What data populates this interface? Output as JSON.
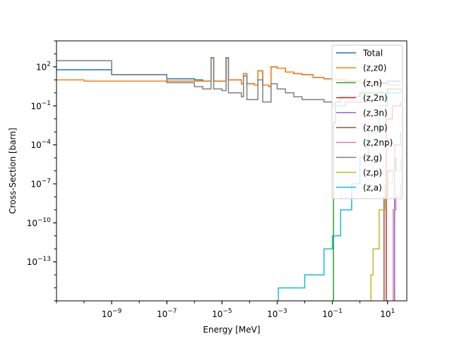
{
  "chart_data": {
    "type": "line",
    "xlabel": "Energy [MeV]",
    "ylabel": "Cross-Section [barn]",
    "xscale": "log",
    "yscale": "log",
    "xlim": [
      1e-11,
      50
    ],
    "ylim": [
      1e-16,
      10000
    ],
    "grid": false,
    "legend_placement": "top-right",
    "x_ticks": [
      {
        "value": 1e-09,
        "base": "10",
        "exp": "−9"
      },
      {
        "value": 1e-07,
        "base": "10",
        "exp": "−7"
      },
      {
        "value": 1e-05,
        "base": "10",
        "exp": "−5"
      },
      {
        "value": 0.001,
        "base": "10",
        "exp": "−3"
      },
      {
        "value": 0.1,
        "base": "10",
        "exp": "−1"
      },
      {
        "value": 10,
        "base": "10",
        "exp": "1"
      }
    ],
    "y_ticks": [
      {
        "value": 1e-13,
        "base": "10",
        "exp": "−13"
      },
      {
        "value": 1e-10,
        "base": "10",
        "exp": "−10"
      },
      {
        "value": 1e-07,
        "base": "10",
        "exp": "−7"
      },
      {
        "value": 0.0001,
        "base": "10",
        "exp": "−4"
      },
      {
        "value": 0.1,
        "base": "10",
        "exp": "−1"
      },
      {
        "value": 100,
        "base": "10",
        "exp": "2"
      }
    ],
    "series": [
      {
        "name": "Total",
        "color": "#1f77b4",
        "points": [
          [
            1e-11,
            60
          ],
          [
            1e-09,
            25
          ],
          [
            1e-07,
            12
          ],
          [
            1e-06,
            10
          ],
          [
            2e-06,
            8
          ],
          [
            4e-06,
            500
          ],
          [
            5e-06,
            8
          ],
          [
            1e-05,
            8
          ],
          [
            1.4e-05,
            500
          ],
          [
            1.7e-05,
            10
          ],
          [
            5e-05,
            5
          ],
          [
            6e-05,
            30
          ],
          [
            8e-05,
            5
          ],
          [
            0.00015,
            4
          ],
          [
            0.0002,
            50
          ],
          [
            0.0003,
            4
          ],
          [
            0.0005,
            3
          ],
          [
            0.0006,
            100
          ],
          [
            0.001,
            80
          ],
          [
            0.002,
            40
          ],
          [
            0.004,
            30
          ],
          [
            0.008,
            25
          ],
          [
            0.02,
            15
          ],
          [
            0.05,
            12
          ],
          [
            0.1,
            10
          ],
          [
            0.3,
            8
          ],
          [
            1,
            6
          ],
          [
            3,
            6
          ],
          [
            10,
            8
          ],
          [
            30,
            8
          ]
        ]
      },
      {
        "name": "(z,z0)",
        "color": "#ff7f0e",
        "points": [
          [
            1e-11,
            10
          ],
          [
            1e-10,
            8
          ],
          [
            1e-08,
            8
          ],
          [
            1e-06,
            8
          ],
          [
            2e-06,
            8
          ],
          [
            4e-06,
            500
          ],
          [
            5e-06,
            8
          ],
          [
            1e-05,
            8
          ],
          [
            1.4e-05,
            500
          ],
          [
            1.7e-05,
            10
          ],
          [
            5e-05,
            5
          ],
          [
            6e-05,
            30
          ],
          [
            8e-05,
            5
          ],
          [
            0.00015,
            4
          ],
          [
            0.0002,
            50
          ],
          [
            0.0003,
            4
          ],
          [
            0.0005,
            3
          ],
          [
            0.0006,
            100
          ],
          [
            0.001,
            80
          ],
          [
            0.002,
            40
          ],
          [
            0.004,
            30
          ],
          [
            0.008,
            25
          ],
          [
            0.02,
            15
          ],
          [
            0.05,
            12
          ],
          [
            0.1,
            10
          ],
          [
            0.3,
            8
          ],
          [
            1,
            6
          ],
          [
            3,
            5
          ],
          [
            10,
            4
          ],
          [
            30,
            4
          ]
        ]
      },
      {
        "name": "(z,n)",
        "color": "#2ca02c",
        "points": [
          [
            0.11,
            1e-16
          ],
          [
            0.11,
            0.005
          ],
          [
            0.13,
            0.2
          ],
          [
            0.2,
            0.5
          ],
          [
            1,
            1
          ],
          [
            10,
            2
          ],
          [
            30,
            2
          ]
        ]
      },
      {
        "name": "(z,2n)",
        "color": "#d62728",
        "points": [
          [
            9,
            1e-16
          ],
          [
            9,
            0.01
          ],
          [
            15,
            0.1
          ],
          [
            30,
            0.2
          ]
        ]
      },
      {
        "name": "(z,3n)",
        "color": "#9467bd",
        "points": [
          [
            18,
            1e-16
          ],
          [
            18,
            0.0001
          ],
          [
            30,
            0.001
          ]
        ]
      },
      {
        "name": "(z,np)",
        "color": "#8c564b",
        "points": [
          [
            7.5,
            1e-16
          ],
          [
            7.5,
            1e-08
          ],
          [
            10,
            1e-06
          ],
          [
            20,
            1e-05
          ]
        ]
      },
      {
        "name": "(z,2np)",
        "color": "#e377c2",
        "points": [
          [
            16,
            1e-16
          ],
          [
            16,
            1e-09
          ],
          [
            20,
            1e-08
          ],
          [
            30,
            1e-07
          ]
        ]
      },
      {
        "name": "(z,g)",
        "color": "#7f7f7f",
        "points": [
          [
            1e-11,
            300
          ],
          [
            1e-09,
            25
          ],
          [
            1e-07,
            6
          ],
          [
            1e-06,
            3
          ],
          [
            2e-06,
            2
          ],
          [
            4e-06,
            500
          ],
          [
            5e-06,
            2
          ],
          [
            1e-05,
            1.5
          ],
          [
            1.4e-05,
            500
          ],
          [
            1.7e-05,
            1
          ],
          [
            5e-05,
            0.5
          ],
          [
            6e-05,
            20
          ],
          [
            8e-05,
            0.3
          ],
          [
            0.00015,
            0.3
          ],
          [
            0.0002,
            10
          ],
          [
            0.0003,
            0.2
          ],
          [
            0.0005,
            0.2
          ],
          [
            0.0006,
            5
          ],
          [
            0.001,
            2
          ],
          [
            0.002,
            1
          ],
          [
            0.004,
            0.5
          ],
          [
            0.008,
            0.3
          ],
          [
            0.02,
            0.3
          ],
          [
            0.05,
            0.2
          ],
          [
            0.1,
            0.1
          ],
          [
            0.3,
            0.2
          ],
          [
            1,
            0.2
          ],
          [
            3,
            0.3
          ]
        ]
      },
      {
        "name": "(z,p)",
        "color": "#bcbd22",
        "points": [
          [
            2.5,
            1e-16
          ],
          [
            2.5,
            1e-14
          ],
          [
            3,
            1e-12
          ],
          [
            5,
            1e-09
          ],
          [
            8,
            1e-07
          ],
          [
            15,
            1e-06
          ],
          [
            30,
            1e-05
          ]
        ]
      },
      {
        "name": "(z,a)",
        "color": "#17becf",
        "points": [
          [
            0.0011,
            1e-16
          ],
          [
            0.0011,
            1e-15
          ],
          [
            0.01,
            1e-14
          ],
          [
            0.05,
            1e-12
          ],
          [
            0.1,
            1e-11
          ],
          [
            0.2,
            1e-09
          ],
          [
            0.5,
            1e-07
          ],
          [
            1,
            1e-05
          ],
          [
            2,
            0.001
          ],
          [
            5,
            0.1
          ],
          [
            10,
            1
          ],
          [
            30,
            2
          ]
        ]
      }
    ]
  }
}
